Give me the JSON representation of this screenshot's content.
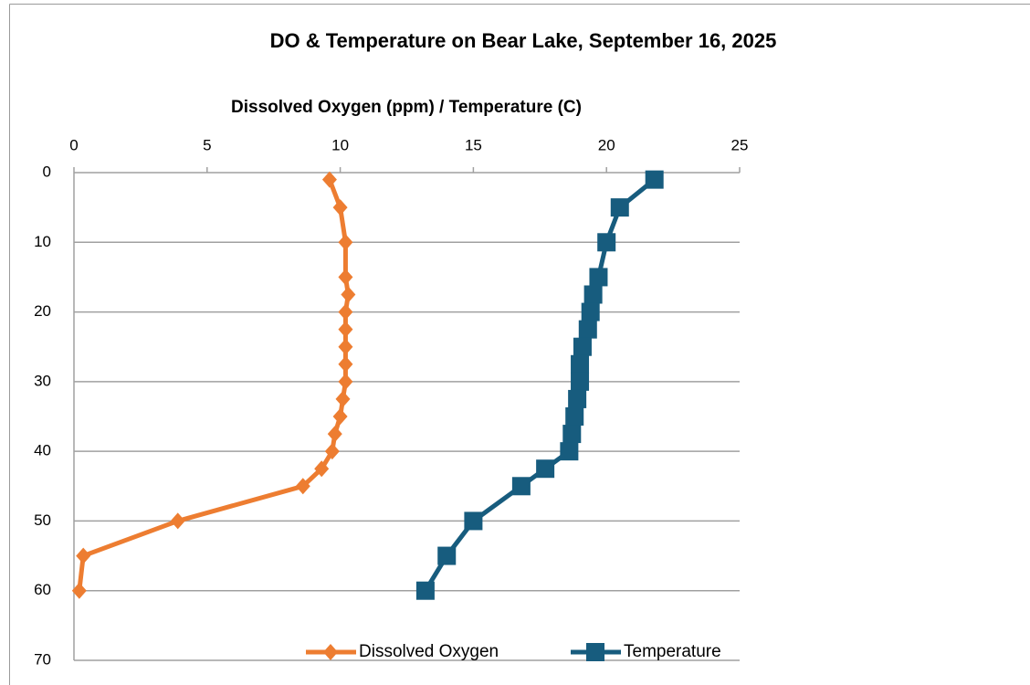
{
  "chart_data": {
    "type": "line",
    "title": "DO & Temperature on Bear Lake, September 16, 2025",
    "x_label": "Dissolved Oxygen (ppm) / Temperature (C)",
    "xlim": [
      0,
      25
    ],
    "xticks": [
      0,
      5,
      10,
      15,
      20,
      25
    ],
    "ylim": [
      0,
      70
    ],
    "yticks": [
      0,
      10,
      20,
      30,
      40,
      50,
      60,
      70
    ],
    "y_inverted": true,
    "x_axis_position": "top",
    "grid": true,
    "legend": "bottom",
    "y": [
      1,
      5,
      10,
      15,
      17.5,
      20,
      22.5,
      25,
      27.5,
      30,
      32.5,
      35,
      37.5,
      40,
      42.5,
      45,
      50,
      55,
      60
    ],
    "series": [
      {
        "name": "Dissolved Oxygen",
        "color": "#ed7d31",
        "marker": "diamond",
        "values": [
          9.6,
          10.0,
          10.2,
          10.2,
          10.3,
          10.2,
          10.2,
          10.2,
          10.2,
          10.2,
          10.1,
          10.0,
          9.8,
          9.7,
          9.3,
          8.6,
          3.9,
          0.35,
          0.2
        ]
      },
      {
        "name": "Temperature",
        "color": "#175c7e",
        "marker": "square",
        "values": [
          21.8,
          20.5,
          20.0,
          19.7,
          19.5,
          19.4,
          19.3,
          19.1,
          19.0,
          19.0,
          18.9,
          18.8,
          18.7,
          18.6,
          17.7,
          16.8,
          15.0,
          14.0,
          13.2
        ]
      }
    ]
  }
}
